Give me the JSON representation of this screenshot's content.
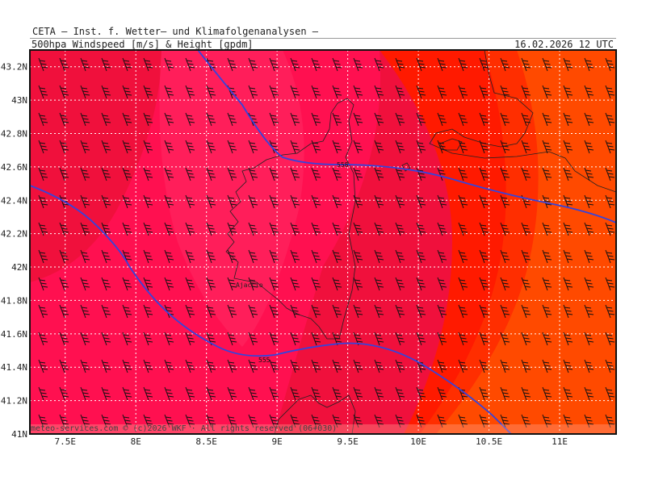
{
  "header": {
    "title": "CETA — Inst. f. Wetter— und Klimafolgenanalysen —",
    "subtitle": "500hpa Windspeed [m/s] & Height [gpdm]",
    "datetime": "16.02.2026 12 UTC"
  },
  "axes": {
    "lat_labels": [
      "43.2N",
      "43N",
      "42.8N",
      "42.6N",
      "42.4N",
      "42.2N",
      "42N",
      "41.8N",
      "41.6N",
      "41.4N",
      "41.2N",
      "41N"
    ],
    "lat_values": [
      43.2,
      43.0,
      42.8,
      42.6,
      42.4,
      42.2,
      42.0,
      41.8,
      41.6,
      41.4,
      41.2,
      41.0
    ],
    "lon_labels": [
      "7.5E",
      "8E",
      "8.5E",
      "9E",
      "9.5E",
      "10E",
      "10.5E",
      "11E"
    ],
    "lon_values": [
      7.5,
      8.0,
      8.5,
      9.0,
      9.5,
      10.0,
      10.5,
      11.0
    ],
    "lon_range": [
      7.25,
      11.4
    ],
    "lat_range": [
      41.0,
      43.3
    ]
  },
  "contours": [
    {
      "label": "558",
      "color": "#3344dd"
    },
    {
      "label": "555",
      "color": "#3344dd"
    }
  ],
  "map_labels": {
    "ajaccio": "Ajaccio"
  },
  "colors": {
    "band_pink": "#ff1050",
    "band_crimson": "#f0103c",
    "band_red": "#ff1a00",
    "band_redorange": "#ff3000",
    "band_orange": "#ff4d00",
    "contour": "#3344dd",
    "grid": "#ffffff",
    "coast": "#222222"
  },
  "footer": "meteo-services.com © (c)2026 WKF · All rights reserved (06+030)"
}
